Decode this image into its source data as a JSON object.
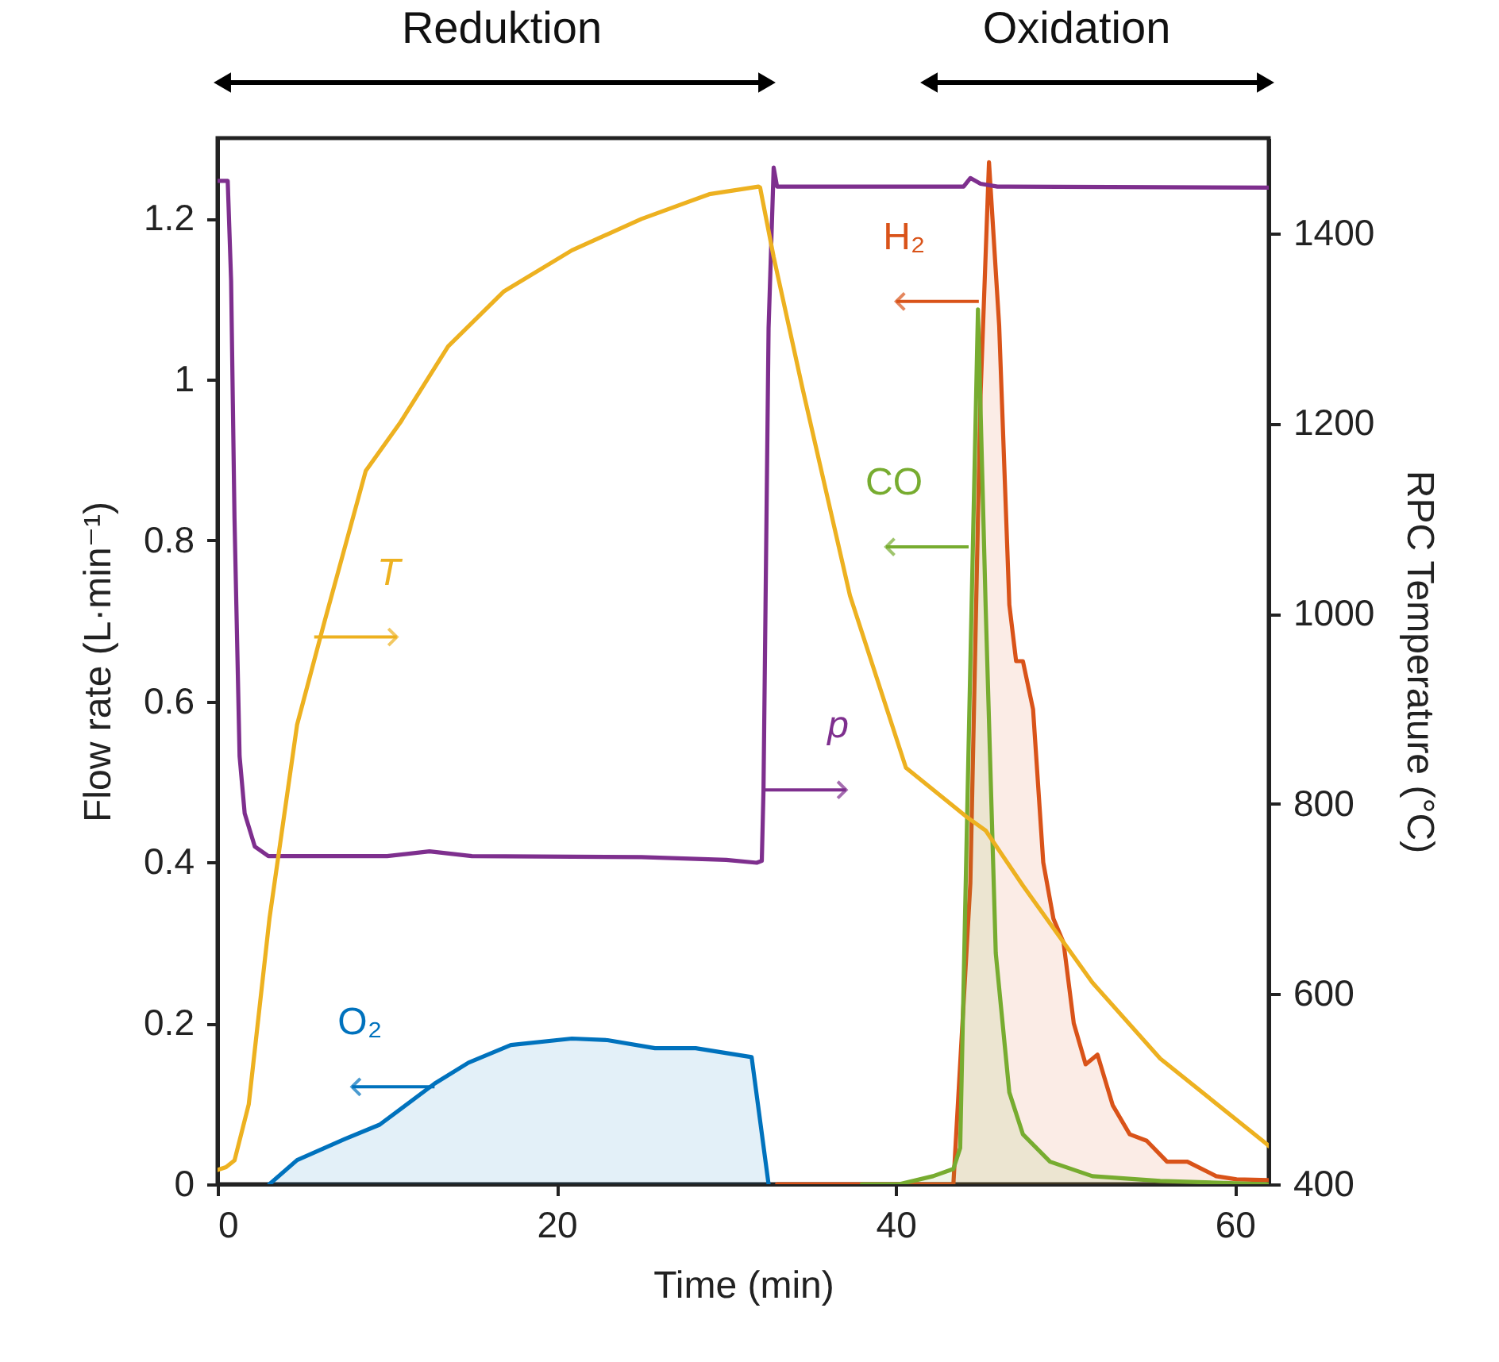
{
  "chart_data": {
    "type": "line",
    "xlabel": "Time (min)",
    "ylabel": "Flow rate (L·min⁻¹)",
    "y2label": "RPC Temperature (°C)",
    "xlim": [
      0,
      62
    ],
    "xticks": [
      0,
      20,
      40,
      60
    ],
    "ylim": [
      0,
      1.3
    ],
    "yticks": [
      0,
      0.2,
      0.4,
      0.6,
      0.8,
      1,
      1.2
    ],
    "y2lim": [
      400,
      1500
    ],
    "y2ticks": [
      400,
      600,
      800,
      1000,
      1200,
      1400
    ],
    "grid": false,
    "series": [
      {
        "axis": "y2",
        "color": "#7e2f8e",
        "x": [
          0,
          0.6,
          0.8,
          1.0,
          1.3,
          1.6,
          2.2,
          3,
          10,
          12.5,
          15,
          25,
          30,
          31.8,
          32.1,
          32.2,
          32.5,
          32.8,
          33,
          44,
          44.4,
          45,
          46,
          62
        ],
        "values": [
          1455,
          1455,
          1350,
          1100,
          850,
          790,
          755,
          745,
          745,
          750,
          745,
          744,
          741,
          738,
          740,
          814,
          1300,
          1469,
          1449,
          1449,
          1458,
          1452,
          1449,
          1448
        ]
      },
      {
        "axis": "y2",
        "color": "#edb120",
        "x": [
          0,
          0.5,
          1.0,
          1.84,
          3.06,
          4.69,
          6.3,
          8.74,
          10.78,
          13.6,
          16.9,
          20.9,
          25.0,
          29.0,
          31.9,
          32.0,
          32.8,
          34.5,
          37.3,
          40.6,
          44.2,
          45.3,
          47.5,
          51.6,
          55.6,
          61.9,
          62
        ],
        "values": [
          415,
          418,
          425,
          484,
          679,
          883,
          991,
          1150,
          1201,
          1281,
          1339,
          1382,
          1415,
          1441,
          1449,
          1448,
          1375,
          1237,
          1019,
          838,
          786,
          772,
          714,
          612,
          532,
          442,
          440
        ]
      },
      {
        "type": "area",
        "color": "#0072bd",
        "x": [
          3.06,
          4.69,
          7.5,
          9.56,
          12.8,
          14.8,
          17.3,
          20.9,
          23.0,
          25.8,
          28.2,
          31.5,
          32.5
        ],
        "values": [
          0,
          0.03,
          0.056,
          0.074,
          0.125,
          0.151,
          0.173,
          0.181,
          0.179,
          0.169,
          0.169,
          0.158,
          0
        ]
      },
      {
        "type": "area",
        "color": "#d95319",
        "x": [
          33,
          43.4,
          44.4,
          45.0,
          45.5,
          46.1,
          46.7,
          47.1,
          47.5,
          48.1,
          48.7,
          49.3,
          49.9,
          50.5,
          51.2,
          51.9,
          52.8,
          53.8,
          54.8,
          56.0,
          57.2,
          58.9,
          60.1,
          62
        ],
        "values": [
          0,
          0,
          0.374,
          0.98,
          1.27,
          1.067,
          0.72,
          0.65,
          0.65,
          0.59,
          0.4,
          0.33,
          0.3,
          0.2,
          0.149,
          0.161,
          0.098,
          0.062,
          0.054,
          0.028,
          0.028,
          0.01,
          0.006,
          0.005
        ]
      },
      {
        "type": "area",
        "color": "#77ac30",
        "x": [
          38,
          40.2,
          42.2,
          43.4,
          43.8,
          44.3,
          44.85,
          45.3,
          45.9,
          46.7,
          47.5,
          49.1,
          51.6,
          55.6,
          62
        ],
        "values": [
          0,
          0,
          0.01,
          0.019,
          0.045,
          0.547,
          1.087,
          0.72,
          0.287,
          0.114,
          0.062,
          0.028,
          0.01,
          0.004,
          0
        ]
      }
    ],
    "annotations": [
      {
        "text": "p",
        "x": 32.2,
        "y": 0.49
      },
      {
        "text": "T",
        "x": 5.7,
        "y": 0.68
      },
      {
        "text": "O₂",
        "x": 12.8,
        "y": 0.121
      },
      {
        "text": "H₂",
        "x": 44.9,
        "y": 1.097
      },
      {
        "text": "CO",
        "x": 44.3,
        "y": 0.792
      },
      "Reduktion",
      "Oxidation"
    ]
  }
}
